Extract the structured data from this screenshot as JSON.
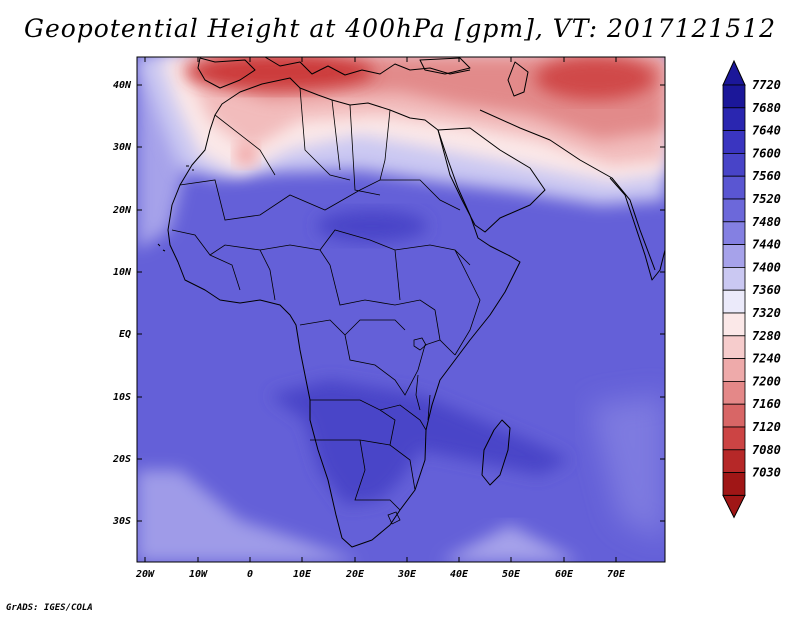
{
  "title": "Geopotential Height at 400hPa [gpm], VT: 2017121512",
  "credit": "GrADS: IGES/COLA",
  "map": {
    "lon_labels": [
      "20W",
      "10W",
      "0",
      "10E",
      "20E",
      "30E",
      "40E",
      "50E",
      "60E",
      "70E"
    ],
    "lat_labels": [
      "40N",
      "30N",
      "20N",
      "10N",
      "EQ",
      "10S",
      "20S",
      "30S"
    ]
  },
  "colorbar": {
    "levels": [
      "7720",
      "7680",
      "7640",
      "7600",
      "7560",
      "7520",
      "7480",
      "7440",
      "7400",
      "7360",
      "7320",
      "7280",
      "7240",
      "7200",
      "7160",
      "7120",
      "7080",
      "7030"
    ],
    "colors": [
      "#1b1799",
      "#2a26b0",
      "#3a35c0",
      "#4844c8",
      "#5a56d2",
      "#6c68da",
      "#8480e2",
      "#a6a2ea",
      "#cac8f2",
      "#ebeafa",
      "#fbe8e8",
      "#f6cccc",
      "#eeaaaa",
      "#e48888",
      "#d86666",
      "#cc4444",
      "#b62828",
      "#a01616"
    ]
  }
}
